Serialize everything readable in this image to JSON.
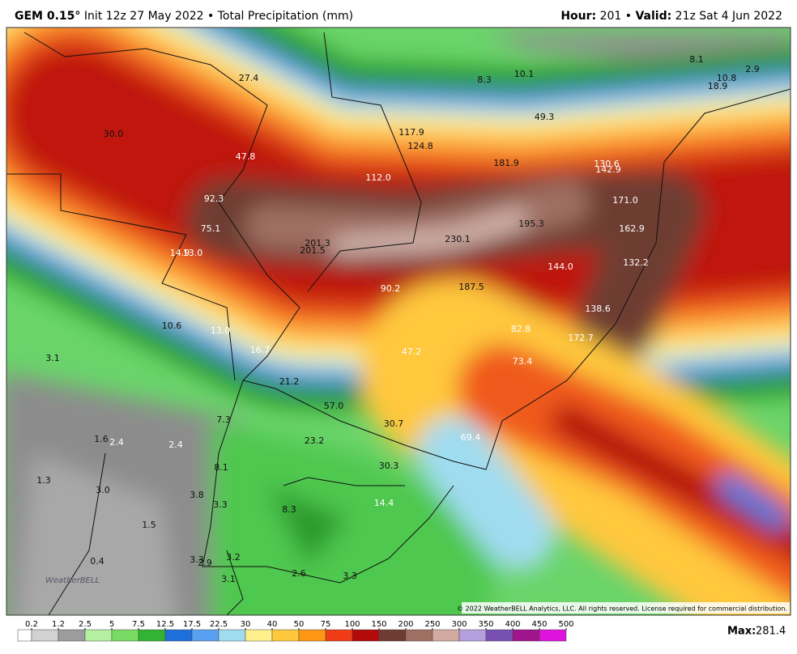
{
  "header": {
    "model": "GEM 0.15°",
    "info": "Init 12z 27 May 2022 • Total Precipitation (mm)",
    "hour_key": "Hour:",
    "hour": "201 •",
    "valid_key": "Valid:",
    "valid": "21z Sat 4 Jun 2022"
  },
  "map": {
    "labels": [
      "27.4",
      "8.3",
      "10.1",
      "8.1",
      "2.9",
      "10.8",
      "18.9",
      "30.0",
      "117.9",
      "124.8",
      "49.3",
      "47.8",
      "181.9",
      "130.6",
      "142.9",
      "112.0",
      "92.3",
      "171.0",
      "195.3",
      "75.1",
      "162.9",
      "201.3",
      "230.1",
      "201.5",
      "14.9",
      "13.0",
      "144.0",
      "132.2",
      "90.2",
      "187.5",
      "138.6",
      "10.6",
      "13.0",
      "82.8",
      "172.7",
      "16.7",
      "47.2",
      "3.1",
      "73.4",
      "21.2",
      "57.0",
      "7.3",
      "30.7",
      "69.4",
      "1.6",
      "2.4",
      "2.4",
      "23.2",
      "8.1",
      "30.3",
      "1.3",
      "3.0",
      "3.8",
      "3.3",
      "14.4",
      "8.3",
      "1.5",
      "3.3",
      "2.9",
      "3.2",
      "0.4",
      "2.6",
      "3.3",
      "3.1"
    ]
  },
  "legend": {
    "ticks": [
      0.2,
      1.2,
      2.5,
      5,
      7.5,
      12.5,
      17.5,
      22.5,
      30,
      40,
      50,
      75,
      100,
      150,
      200,
      250,
      300,
      350,
      400,
      450,
      500
    ],
    "colors": [
      "#ffffff",
      "#d2d2d2",
      "#9c9c9c",
      "#b4f0a0",
      "#78dc64",
      "#32b432",
      "#1e6edc",
      "#5aa0f0",
      "#a0dcf0",
      "#fff08c",
      "#ffc83c",
      "#ff9614",
      "#f03c14",
      "#b40a0a",
      "#6e3c32",
      "#a07064",
      "#d2aaa0",
      "#b4a0dc",
      "#7850b4",
      "#a0148c",
      "#dc14dc"
    ],
    "max_key": "Max:",
    "max": "281.4"
  },
  "footer": {
    "copyright": "© 2022 WeatherBELL Analytics, LLC. All rights reserved. License required for commercial distribution.",
    "logo": "WeatherBELL"
  }
}
